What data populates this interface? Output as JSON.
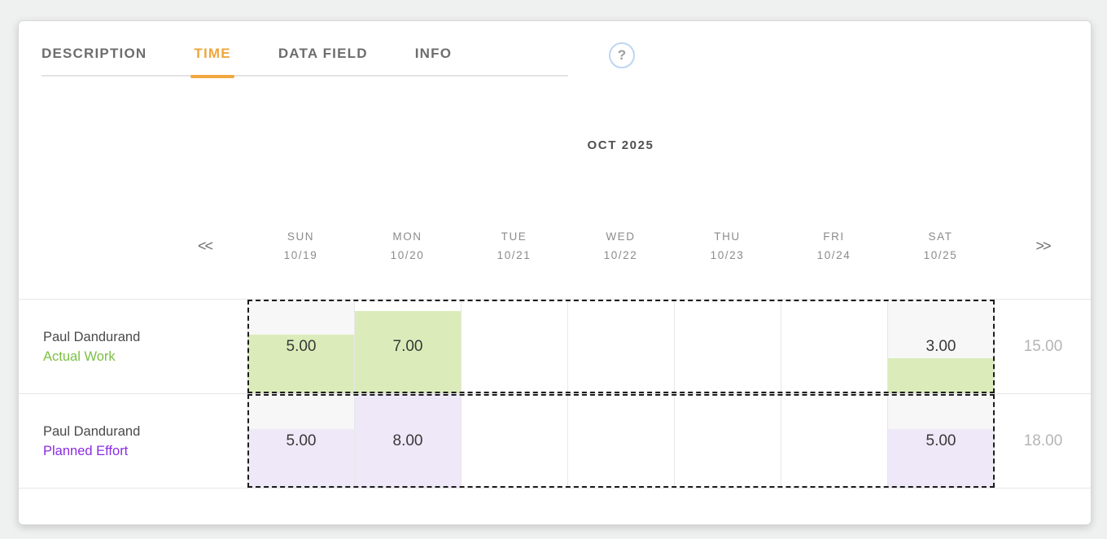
{
  "tabs": {
    "items": [
      {
        "label": "DESCRIPTION",
        "active": false
      },
      {
        "label": "TIME",
        "active": true
      },
      {
        "label": "DATA FIELD",
        "active": false
      },
      {
        "label": "INFO",
        "active": false
      }
    ],
    "help_label": "?"
  },
  "calendar": {
    "month_label": "OCT 2025",
    "prev_label": "<<",
    "next_label": ">>",
    "days": [
      {
        "name": "SUN",
        "date": "10/19",
        "weekend": true
      },
      {
        "name": "MON",
        "date": "10/20",
        "weekend": false
      },
      {
        "name": "TUE",
        "date": "10/21",
        "weekend": false
      },
      {
        "name": "WED",
        "date": "10/22",
        "weekend": false
      },
      {
        "name": "THU",
        "date": "10/23",
        "weekend": false
      },
      {
        "name": "FRI",
        "date": "10/24",
        "weekend": false
      },
      {
        "name": "SAT",
        "date": "10/25",
        "weekend": true
      }
    ],
    "max_hours_per_day": 8,
    "rows": [
      {
        "person": "Paul Dandurand",
        "metric": "Actual Work",
        "metric_color": "#7bc043",
        "fill_color": "#dbecba",
        "total": "15.00",
        "cells": [
          {
            "value": "5.00",
            "hours": 5
          },
          {
            "value": "7.00",
            "hours": 7
          },
          {
            "value": "",
            "hours": 0
          },
          {
            "value": "",
            "hours": 0
          },
          {
            "value": "",
            "hours": 0
          },
          {
            "value": "",
            "hours": 0
          },
          {
            "value": "3.00",
            "hours": 3
          }
        ]
      },
      {
        "person": "Paul Dandurand",
        "metric": "Planned Effort",
        "metric_color": "#8b2be2",
        "fill_color": "#eee8f8",
        "total": "18.00",
        "cells": [
          {
            "value": "5.00",
            "hours": 5
          },
          {
            "value": "8.00",
            "hours": 8
          },
          {
            "value": "",
            "hours": 0
          },
          {
            "value": "",
            "hours": 0
          },
          {
            "value": "",
            "hours": 0
          },
          {
            "value": "",
            "hours": 0
          },
          {
            "value": "5.00",
            "hours": 5
          }
        ]
      }
    ]
  },
  "colors": {
    "accent_orange": "#efa73e",
    "actual_work_green": "#7bc043",
    "planned_effort_purple": "#8b2be2",
    "actual_fill_green": "#dbecba",
    "planned_fill_purple": "#eee8f8",
    "weekend_bg": "#f7f7f7"
  }
}
